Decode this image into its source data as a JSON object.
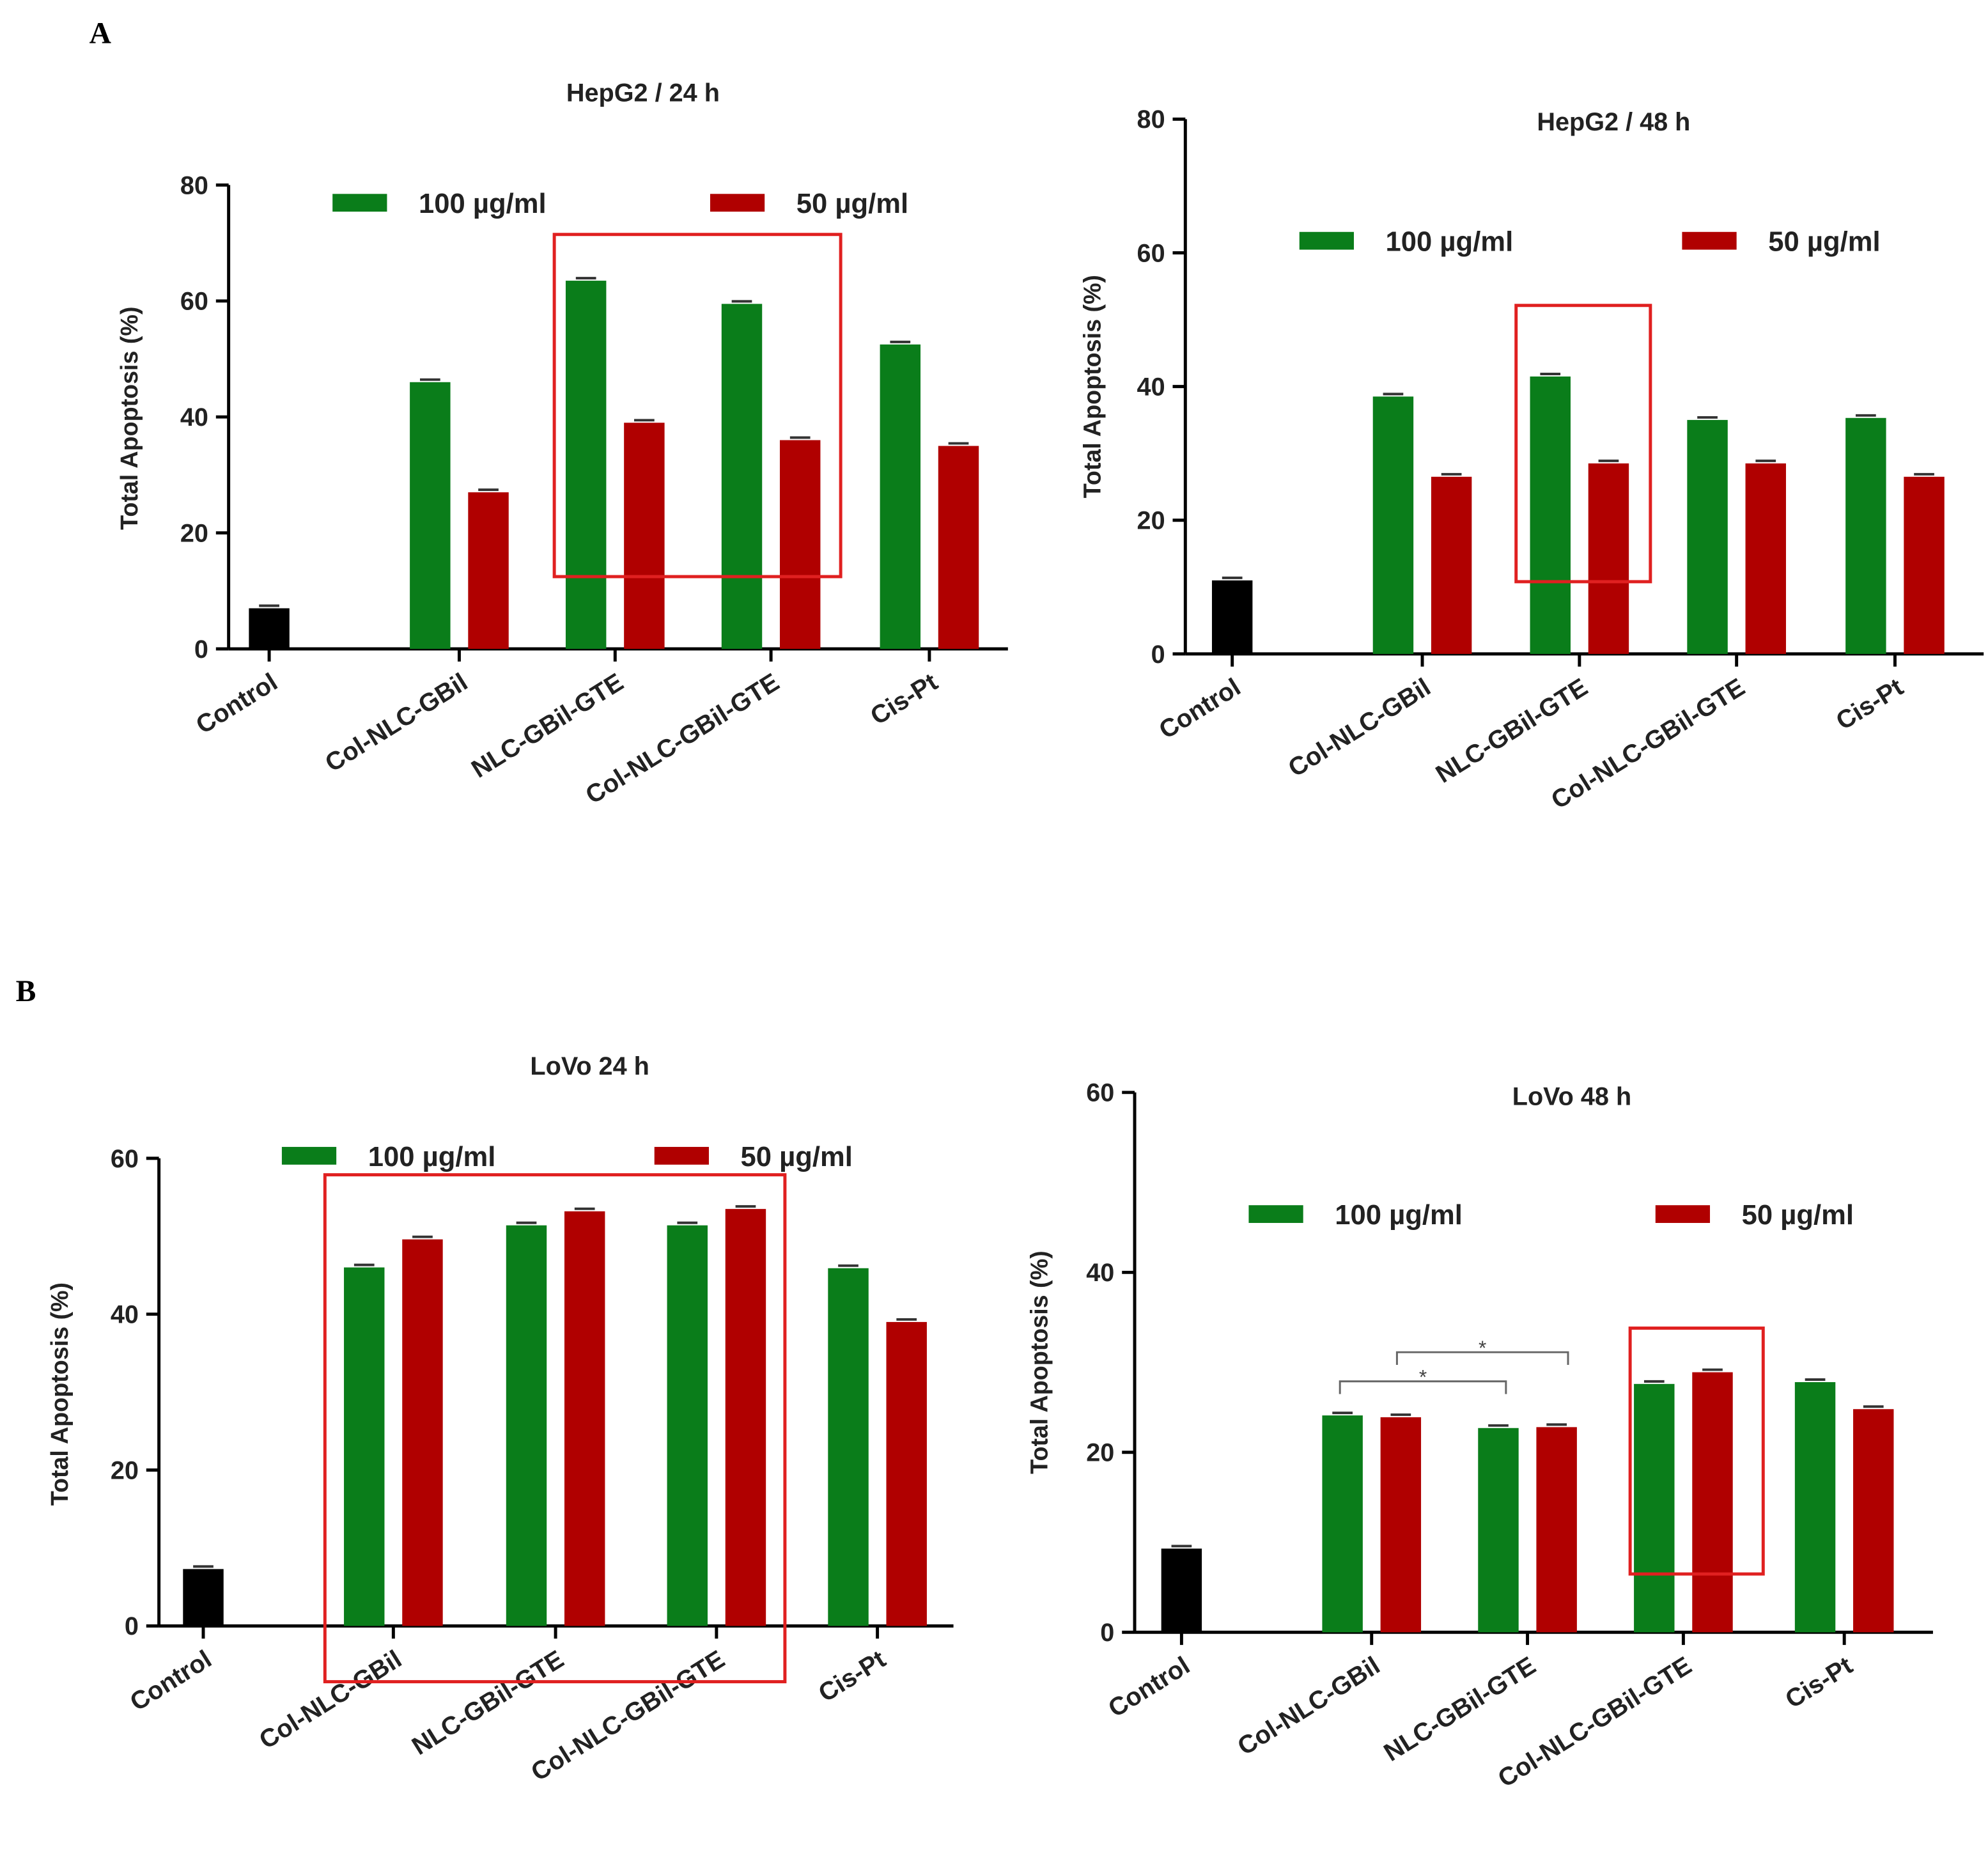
{
  "panel_labels": [
    "A",
    "B"
  ],
  "colors": {
    "control": "#000000",
    "100": "#0a7d1a",
    "50": "#b00000",
    "highlight": "#e02020"
  },
  "chart_data": [
    {
      "type": "bar",
      "title": "HepG2 / 24 h",
      "ylabel": "Total Apoptosis (%)",
      "ylim": [
        0,
        80
      ],
      "yticks": [
        0,
        20,
        40,
        60,
        80
      ],
      "categories": [
        "Control",
        "Col-NLC-GBil",
        "NLC-GBil-GTE",
        "Col-NLC-GBil-GTE",
        "Cis-Pt"
      ],
      "control": 7,
      "series": [
        {
          "name": "100 µg/ml",
          "values": [
            null,
            46,
            63.5,
            59.5,
            52.5
          ]
        },
        {
          "name": "50 µg/ml",
          "values": [
            null,
            27,
            39,
            36,
            35
          ]
        }
      ],
      "highlight_categories": [
        "NLC-GBil-GTE",
        "Col-NLC-GBil-GTE"
      ]
    },
    {
      "type": "bar",
      "title": "HepG2 /  48 h",
      "ylabel": "Total Apoptosis (%)",
      "ylim": [
        0,
        80
      ],
      "yticks": [
        0,
        20,
        40,
        60,
        80
      ],
      "categories": [
        "Control",
        "Col-NLC-GBil",
        "NLC-GBil-GTE",
        "Col-NLC-GBil-GTE",
        "Cis-Pt"
      ],
      "control": 11,
      "series": [
        {
          "name": "100 µg/ml",
          "values": [
            null,
            38.5,
            41.5,
            35,
            35.3
          ]
        },
        {
          "name": "50 µg/ml",
          "values": [
            null,
            26.5,
            28.5,
            28.5,
            26.5
          ]
        }
      ],
      "highlight_categories": [
        "NLC-GBil-GTE"
      ]
    },
    {
      "type": "bar",
      "title": "LoVo 24 h",
      "ylabel": "Total Apoptosis (%)",
      "ylim": [
        0,
        60
      ],
      "yticks": [
        0,
        20,
        40,
        60
      ],
      "categories": [
        "Control",
        "Col-NLC-GBil",
        "NLC-GBil-GTE",
        "Col-NLC-GBil-GTE",
        "Cis-Pt"
      ],
      "control": 7.3,
      "series": [
        {
          "name": "100 µg/ml",
          "values": [
            null,
            46,
            51.4,
            51.4,
            45.9
          ]
        },
        {
          "name": "50 µg/ml",
          "values": [
            null,
            49.6,
            53.2,
            53.5,
            39
          ]
        }
      ],
      "highlight_categories": [
        "Col-NLC-GBil",
        "NLC-GBil-GTE",
        "Col-NLC-GBil-GTE"
      ]
    },
    {
      "type": "bar",
      "title": "LoVo 48 h",
      "ylabel": "Total Apoptosis (%)",
      "ylim": [
        0,
        60
      ],
      "yticks": [
        0,
        20,
        40,
        60
      ],
      "categories": [
        "Control",
        "Col-NLC-GBil",
        "NLC-GBil-GTE",
        "Col-NLC-GBil-GTE",
        "Cis-Pt"
      ],
      "control": 9.3,
      "series": [
        {
          "name": "100 µg/ml",
          "values": [
            null,
            24.1,
            22.7,
            27.6,
            27.8
          ]
        },
        {
          "name": "50 µg/ml",
          "values": [
            null,
            23.9,
            22.8,
            28.9,
            24.8
          ]
        }
      ],
      "highlight_categories": [
        "Col-NLC-GBil-GTE"
      ],
      "annotations": [
        "*",
        "*"
      ]
    }
  ]
}
